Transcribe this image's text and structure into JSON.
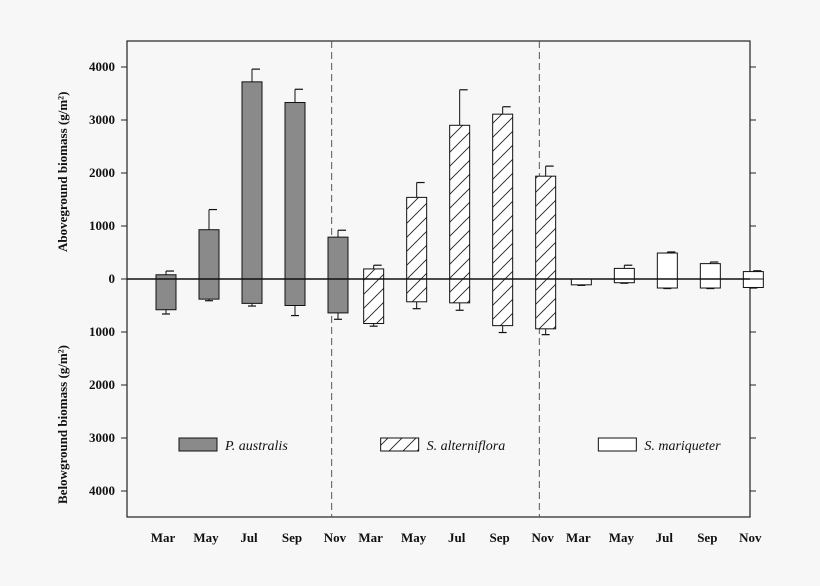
{
  "chart_data": {
    "type": "bar",
    "ylabel_top": "Aboveground biomass (g/m²)",
    "ylabel_bottom": "Belowground biomass (g/m²)",
    "ylim": [
      -4500,
      4500
    ],
    "yticks": [
      4000,
      3000,
      2000,
      1000,
      0,
      -1000,
      -2000,
      -3000,
      -4000
    ],
    "ytick_labels": [
      "4000",
      "3000",
      "2000",
      "1000",
      "0",
      "1000",
      "2000",
      "3000",
      "4000"
    ],
    "categories": [
      "Mar",
      "May",
      "Jul",
      "Sep",
      "Nov"
    ],
    "series": [
      {
        "name": "P. australis",
        "style": "solid",
        "color": "#8a8a8a",
        "above": [
          80,
          930,
          3720,
          3330,
          790
        ],
        "above_err": [
          70,
          380,
          240,
          250,
          130
        ],
        "below": [
          580,
          380,
          460,
          500,
          640
        ],
        "below_err": [
          80,
          30,
          50,
          190,
          120
        ]
      },
      {
        "name": "S. alterniflora",
        "style": "hatch",
        "color": "#ffffff",
        "above": [
          190,
          1540,
          2900,
          3110,
          1940
        ],
        "above_err": [
          70,
          280,
          670,
          140,
          190
        ],
        "below": [
          840,
          430,
          450,
          880,
          940
        ],
        "below_err": [
          50,
          130,
          140,
          130,
          110
        ]
      },
      {
        "name": "S. mariqueter",
        "style": "open",
        "color": "#ffffff",
        "above": [
          0,
          200,
          490,
          290,
          140
        ],
        "above_err": [
          0,
          60,
          20,
          30,
          15
        ],
        "below": [
          110,
          70,
          170,
          170,
          160
        ],
        "below_err": [
          10,
          10,
          10,
          10,
          10
        ]
      }
    ],
    "grid": false,
    "legend": "inside-lower, one entry per panel"
  }
}
